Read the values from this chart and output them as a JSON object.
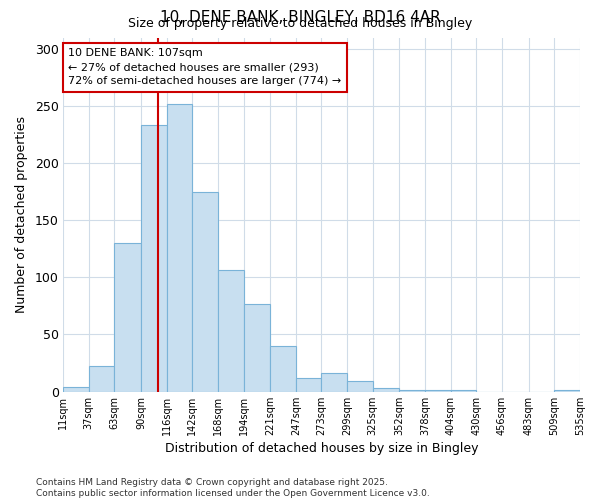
{
  "title1": "10, DENE BANK, BINGLEY, BD16 4AR",
  "title2": "Size of property relative to detached houses in Bingley",
  "xlabel": "Distribution of detached houses by size in Bingley",
  "ylabel": "Number of detached properties",
  "footnote1": "Contains HM Land Registry data © Crown copyright and database right 2025.",
  "footnote2": "Contains public sector information licensed under the Open Government Licence v3.0.",
  "property_size": 107,
  "property_label": "10 DENE BANK: 107sqm",
  "smaller_pct": 27,
  "smaller_count": 293,
  "larger_pct": 72,
  "larger_count": 774,
  "bar_color": "#c8dff0",
  "bar_edge_color": "#7ab3d8",
  "bar_edge_width": 0.8,
  "vline_color": "#cc0000",
  "annotation_box_color": "#cc0000",
  "background_color": "#ffffff",
  "grid_color": "#d0dce8",
  "bin_edges": [
    11,
    37,
    63,
    90,
    116,
    142,
    168,
    194,
    221,
    247,
    273,
    299,
    325,
    352,
    378,
    404,
    430,
    456,
    483,
    509,
    535
  ],
  "bin_labels": [
    "11sqm",
    "37sqm",
    "63sqm",
    "90sqm",
    "116sqm",
    "142sqm",
    "168sqm",
    "194sqm",
    "221sqm",
    "247sqm",
    "273sqm",
    "299sqm",
    "325sqm",
    "352sqm",
    "378sqm",
    "404sqm",
    "430sqm",
    "456sqm",
    "483sqm",
    "509sqm",
    "535sqm"
  ],
  "counts": [
    4,
    22,
    130,
    233,
    252,
    175,
    106,
    77,
    40,
    12,
    16,
    9,
    3,
    1,
    1,
    1,
    0,
    0,
    0,
    1
  ],
  "ylim": [
    0,
    310
  ],
  "yticks": [
    0,
    50,
    100,
    150,
    200,
    250,
    300
  ]
}
